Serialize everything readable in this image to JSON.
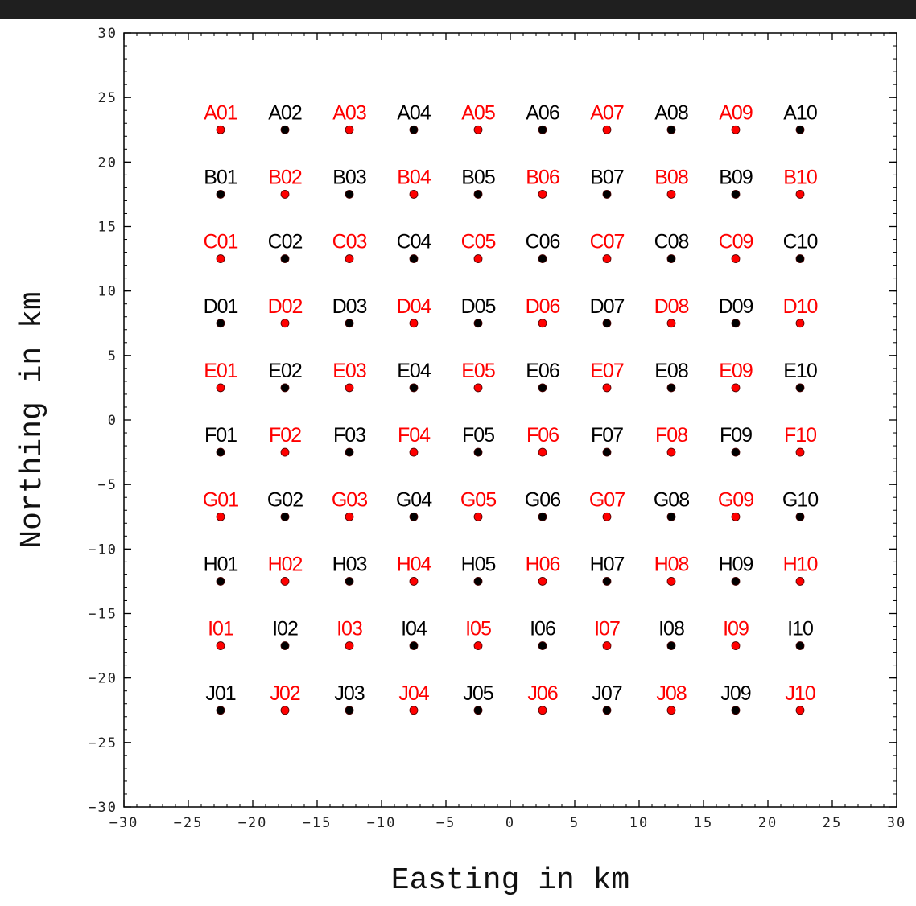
{
  "chart_data": {
    "type": "scatter",
    "title": "",
    "xlabel": "Easting in km",
    "ylabel": "Northing in km",
    "xlim": [
      -30,
      30
    ],
    "ylim": [
      -30,
      30
    ],
    "x_ticks": [
      -30,
      -25,
      -20,
      -15,
      -10,
      -5,
      0,
      5,
      10,
      15,
      20,
      25,
      30
    ],
    "y_ticks": [
      -30,
      -25,
      -20,
      -15,
      -10,
      -5,
      0,
      5,
      10,
      15,
      20,
      25,
      30
    ],
    "grid": false,
    "colors": {
      "odd": "#ff0000",
      "even": "#000000"
    },
    "rows": [
      {
        "y": 22.5,
        "labels": [
          "A01",
          "A02",
          "A03",
          "A04",
          "A05",
          "A06",
          "A07",
          "A08",
          "A09",
          "A10"
        ],
        "first_color": "odd"
      },
      {
        "y": 17.5,
        "labels": [
          "B01",
          "B02",
          "B03",
          "B04",
          "B05",
          "B06",
          "B07",
          "B08",
          "B09",
          "B10"
        ],
        "first_color": "even"
      },
      {
        "y": 12.5,
        "labels": [
          "C01",
          "C02",
          "C03",
          "C04",
          "C05",
          "C06",
          "C07",
          "C08",
          "C09",
          "C10"
        ],
        "first_color": "odd"
      },
      {
        "y": 7.5,
        "labels": [
          "D01",
          "D02",
          "D03",
          "D04",
          "D05",
          "D06",
          "D07",
          "D08",
          "D09",
          "D10"
        ],
        "first_color": "even"
      },
      {
        "y": 2.5,
        "labels": [
          "E01",
          "E02",
          "E03",
          "E04",
          "E05",
          "E06",
          "E07",
          "E08",
          "E09",
          "E10"
        ],
        "first_color": "odd"
      },
      {
        "y": -2.5,
        "labels": [
          "F01",
          "F02",
          "F03",
          "F04",
          "F05",
          "F06",
          "F07",
          "F08",
          "F09",
          "F10"
        ],
        "first_color": "even"
      },
      {
        "y": -7.5,
        "labels": [
          "G01",
          "G02",
          "G03",
          "G04",
          "G05",
          "G06",
          "G07",
          "G08",
          "G09",
          "G10"
        ],
        "first_color": "odd"
      },
      {
        "y": -12.5,
        "labels": [
          "H01",
          "H02",
          "H03",
          "H04",
          "H05",
          "H06",
          "H07",
          "H08",
          "H09",
          "H10"
        ],
        "first_color": "even"
      },
      {
        "y": -17.5,
        "labels": [
          "I01",
          "I02",
          "I03",
          "I04",
          "I05",
          "I06",
          "I07",
          "I08",
          "I09",
          "I10"
        ],
        "first_color": "odd"
      },
      {
        "y": -22.5,
        "labels": [
          "J01",
          "J02",
          "J03",
          "J04",
          "J05",
          "J06",
          "J07",
          "J08",
          "J09",
          "J10"
        ],
        "first_color": "even"
      }
    ],
    "x_positions": [
      -22.5,
      -17.5,
      -12.5,
      -7.5,
      -2.5,
      2.5,
      7.5,
      12.5,
      17.5,
      22.5
    ]
  }
}
